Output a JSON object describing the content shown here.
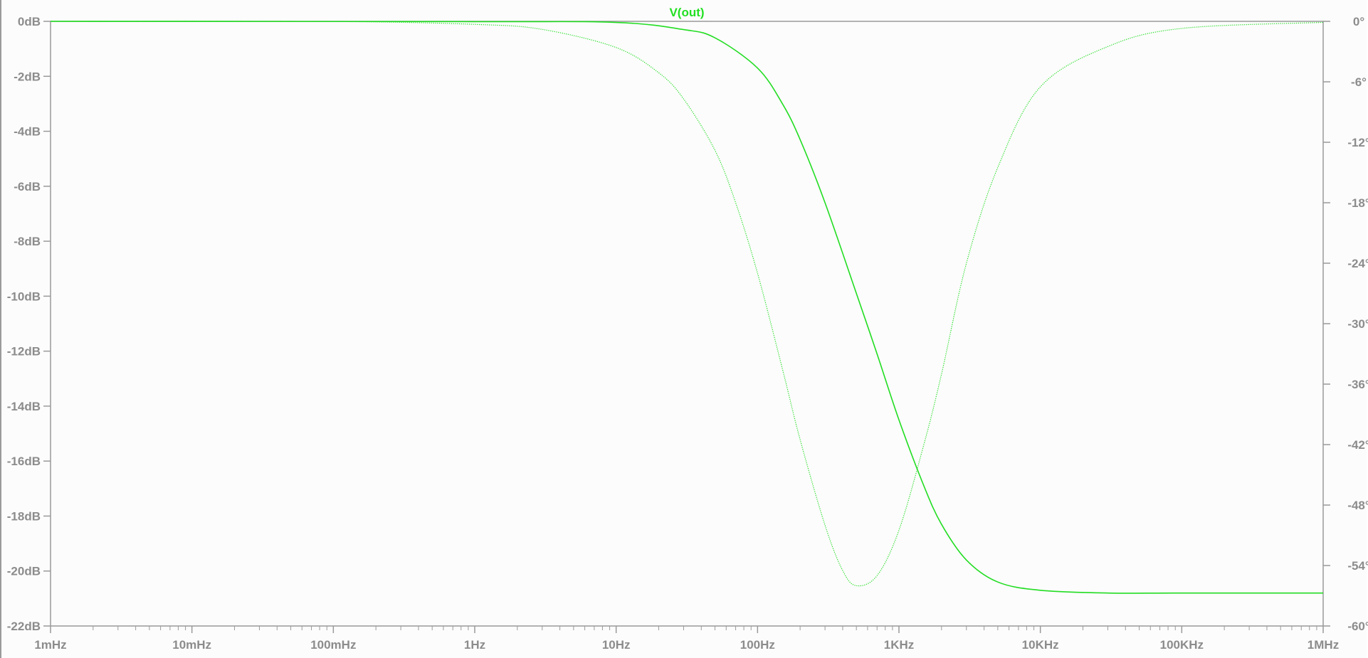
{
  "chart_data": {
    "type": "line",
    "title": "",
    "xscale": "log",
    "xlim": [
      0.001,
      1000000
    ],
    "y_left_lim": [
      -22,
      0
    ],
    "y_right_lim": [
      -60,
      0
    ],
    "x_tick_labels": [
      "1mHz",
      "10mHz",
      "100mHz",
      "1Hz",
      "10Hz",
      "100Hz",
      "1KHz",
      "10KHz",
      "100KHz",
      "1MHz"
    ],
    "y_left_tick_labels": [
      "0dB",
      "-2dB",
      "-4dB",
      "-6dB",
      "-8dB",
      "-10dB",
      "-12dB",
      "-14dB",
      "-16dB",
      "-18dB",
      "-20dB",
      "-22dB"
    ],
    "y_right_tick_labels": [
      "0°",
      "-6°",
      "-12°",
      "-18°",
      "-24°",
      "-30°",
      "-36°",
      "-42°",
      "-48°",
      "-54°",
      "-60°"
    ],
    "legend": [
      "V(out)"
    ],
    "grid": false,
    "colors": {
      "trace": "#22dd22",
      "axis": "#9a9a9a",
      "text": "#8c8c8c",
      "background": "#fcfcfc"
    },
    "series": [
      {
        "name": "V(out)",
        "quantity": "magnitude",
        "axis": "left",
        "unit": "dB",
        "style": "solid",
        "x": [
          0.001,
          1,
          10,
          30,
          50,
          100,
          150,
          200,
          300,
          500,
          700,
          1000,
          1500,
          2000,
          3000,
          5000,
          10000,
          30000,
          100000,
          1000000
        ],
        "values": [
          0,
          -0.01,
          -0.04,
          -0.3,
          -0.6,
          -1.7,
          -3.0,
          -4.3,
          -6.6,
          -9.9,
          -12.1,
          -14.5,
          -16.9,
          -18.3,
          -19.6,
          -20.4,
          -20.7,
          -20.8,
          -20.8,
          -20.8
        ]
      },
      {
        "name": "V(out)",
        "quantity": "phase",
        "axis": "right",
        "unit": "°",
        "style": "dotted",
        "x": [
          0.001,
          0.1,
          1,
          3,
          10,
          20,
          30,
          50,
          70,
          100,
          150,
          200,
          300,
          400,
          500,
          700,
          1000,
          1500,
          2000,
          3000,
          5000,
          10000,
          30000,
          100000,
          1000000
        ],
        "values": [
          0,
          -0.02,
          -0.3,
          -0.8,
          -2.6,
          -5.1,
          -7.7,
          -12.8,
          -18.0,
          -25.0,
          -34.5,
          -41.5,
          -50.0,
          -54.5,
          -56.0,
          -55.0,
          -50.5,
          -42.0,
          -35.0,
          -24.0,
          -14.5,
          -6.5,
          -2.5,
          -0.7,
          -0.1
        ]
      }
    ]
  }
}
